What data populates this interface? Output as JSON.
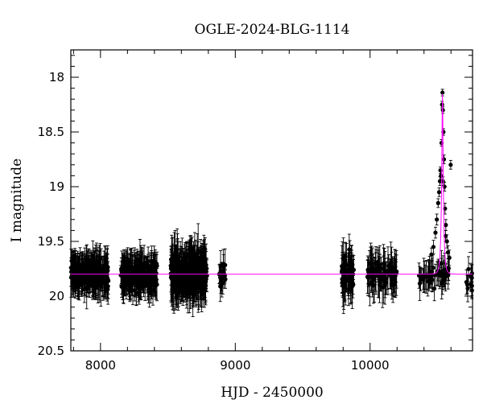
{
  "chart_data": {
    "type": "scatter",
    "title": "OGLE-2024-BLG-1114",
    "xlabel": "HJD - 2450000",
    "ylabel": "I magnitude",
    "xlim": [
      7780,
      10760
    ],
    "ylim": [
      17.75,
      20.5
    ],
    "y_inverted": true,
    "x_ticks": [
      8000,
      9000,
      10000
    ],
    "y_ticks": [
      18,
      18.5,
      19,
      19.5,
      20,
      20.5
    ],
    "y_tick_labels": [
      "18",
      "18.5",
      "19",
      "19.5",
      "20",
      "20.5"
    ],
    "grid": false,
    "legend": "none",
    "colors": {
      "points": "#000000",
      "model": "#ff00ff",
      "axes": "#000000"
    },
    "baseline_magnitude": 19.8,
    "seasons": [
      {
        "x_range": [
          7780,
          8060
        ],
        "n_points": 230,
        "y_mean": 19.8,
        "y_spread": 0.1,
        "err_range": [
          0.06,
          0.2
        ]
      },
      {
        "x_range": [
          8150,
          8420
        ],
        "n_points": 220,
        "y_mean": 19.8,
        "y_spread": 0.1,
        "err_range": [
          0.06,
          0.2
        ]
      },
      {
        "x_range": [
          8520,
          8790
        ],
        "n_points": 300,
        "y_mean": 19.8,
        "y_spread": 0.13,
        "err_range": [
          0.08,
          0.25
        ]
      },
      {
        "x_range": [
          8880,
          8930
        ],
        "n_points": 20,
        "y_mean": 19.8,
        "y_spread": 0.09,
        "err_range": [
          0.06,
          0.16
        ]
      },
      {
        "x_range": [
          9790,
          9880
        ],
        "n_points": 60,
        "y_mean": 19.8,
        "y_spread": 0.12,
        "err_range": [
          0.08,
          0.25
        ]
      },
      {
        "x_range": [
          9980,
          10200
        ],
        "n_points": 80,
        "y_mean": 19.8,
        "y_spread": 0.1,
        "err_range": [
          0.08,
          0.22
        ]
      },
      {
        "x_range": [
          10350,
          10600
        ],
        "n_points": 50,
        "y_mean": 19.8,
        "y_spread": 0.08,
        "err_range": [
          0.06,
          0.16
        ]
      },
      {
        "x_range": [
          10710,
          10760
        ],
        "n_points": 12,
        "y_mean": 19.85,
        "y_spread": 0.08,
        "err_range": [
          0.06,
          0.14
        ]
      }
    ],
    "event_points": [
      {
        "x": 10455,
        "y": 19.62,
        "err": 0.06
      },
      {
        "x": 10470,
        "y": 19.55,
        "err": 0.06
      },
      {
        "x": 10485,
        "y": 19.42,
        "err": 0.05
      },
      {
        "x": 10495,
        "y": 19.3,
        "err": 0.05
      },
      {
        "x": 10505,
        "y": 19.15,
        "err": 0.04
      },
      {
        "x": 10512,
        "y": 19.05,
        "err": 0.04
      },
      {
        "x": 10518,
        "y": 18.95,
        "err": 0.04
      },
      {
        "x": 10522,
        "y": 18.85,
        "err": 0.03
      },
      {
        "x": 10526,
        "y": 18.9,
        "err": 0.04
      },
      {
        "x": 10530,
        "y": 18.6,
        "err": 0.03
      },
      {
        "x": 10534,
        "y": 18.25,
        "err": 0.03
      },
      {
        "x": 10537,
        "y": 18.14,
        "err": 0.03
      },
      {
        "x": 10540,
        "y": 18.3,
        "err": 0.03
      },
      {
        "x": 10544,
        "y": 18.5,
        "err": 0.03
      },
      {
        "x": 10548,
        "y": 18.75,
        "err": 0.04
      },
      {
        "x": 10552,
        "y": 19.0,
        "err": 0.04
      },
      {
        "x": 10556,
        "y": 19.2,
        "err": 0.05
      },
      {
        "x": 10562,
        "y": 19.35,
        "err": 0.05
      },
      {
        "x": 10570,
        "y": 19.5,
        "err": 0.06
      },
      {
        "x": 10578,
        "y": 19.6,
        "err": 0.06
      },
      {
        "x": 10588,
        "y": 19.65,
        "err": 0.07
      },
      {
        "x": 10598,
        "y": 18.8,
        "err": 0.04
      },
      {
        "x": 10540,
        "y": 18.95,
        "err": 0.04
      },
      {
        "x": 10560,
        "y": 19.45,
        "err": 0.05
      }
    ],
    "model": {
      "type": "pspl",
      "t0": 10537,
      "baseline": 19.8,
      "peak": 18.14,
      "tE": 14
    }
  }
}
